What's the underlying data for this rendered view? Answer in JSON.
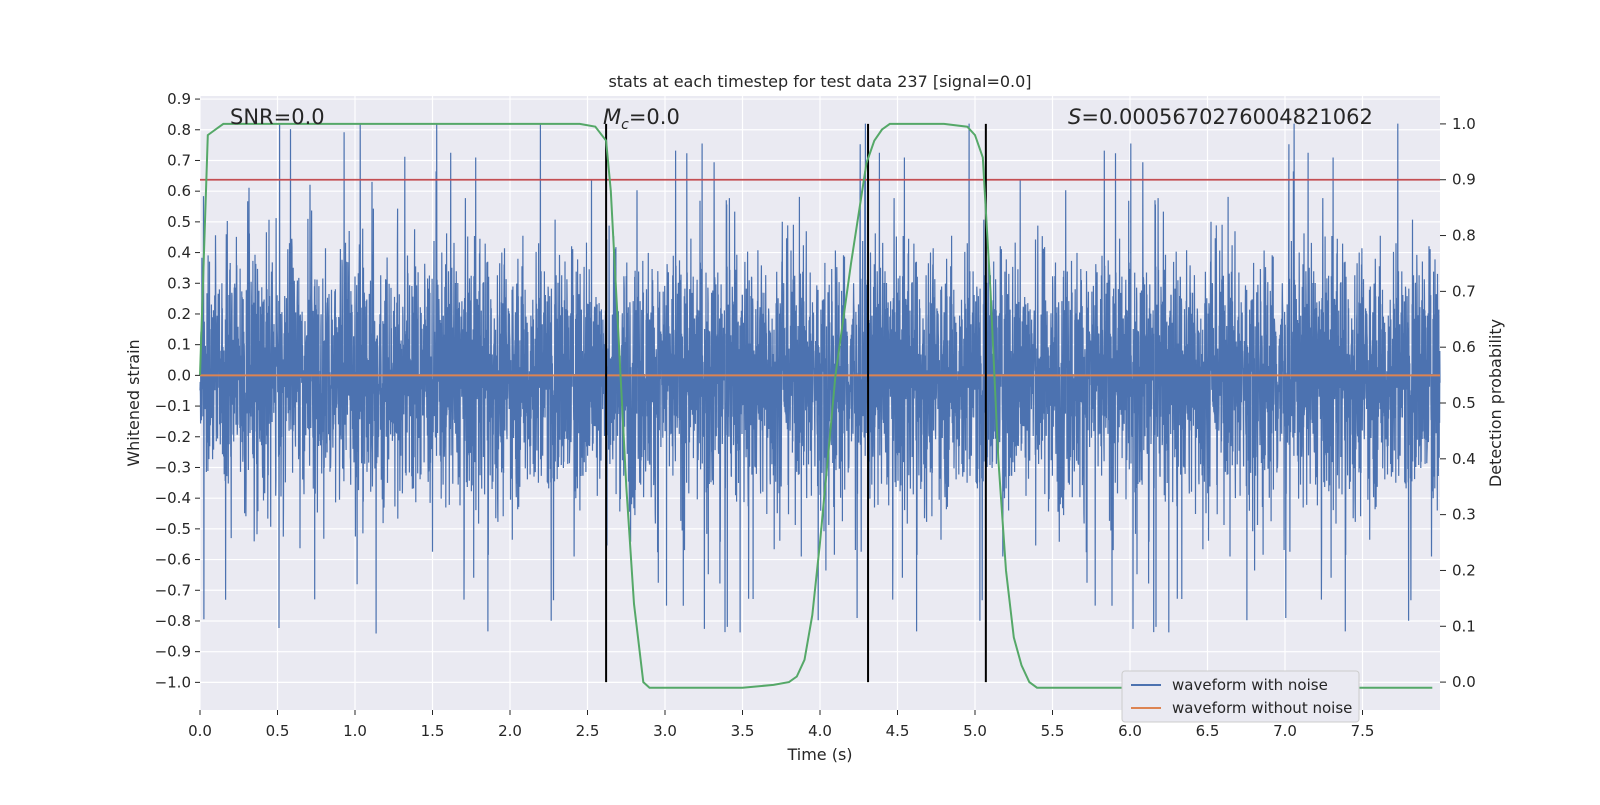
{
  "chart_data": {
    "type": "line",
    "title": "stats at each timestep for test data 237 [signal=0.0]",
    "xlabel": "Time (s)",
    "ylabel": "Whitened strain",
    "y2label": "Detection probability",
    "xlim": [
      0.0,
      8.0
    ],
    "ylim": [
      -1.09,
      0.91
    ],
    "y2lim": [
      -0.05,
      1.05
    ],
    "xticks": [
      "0.0",
      "0.5",
      "1.0",
      "1.5",
      "2.0",
      "2.5",
      "3.0",
      "3.5",
      "4.0",
      "4.5",
      "5.0",
      "5.5",
      "6.0",
      "6.5",
      "7.0",
      "7.5"
    ],
    "xtick_values": [
      0,
      0.5,
      1,
      1.5,
      2,
      2.5,
      3,
      3.5,
      4,
      4.5,
      5,
      5.5,
      6,
      6.5,
      7,
      7.5
    ],
    "yticks": [
      "0.9",
      "0.8",
      "0.7",
      "0.6",
      "0.5",
      "0.4",
      "0.3",
      "0.2",
      "0.1",
      "0.0",
      "−0.1",
      "−0.2",
      "−0.3",
      "−0.4",
      "−0.5",
      "−0.6",
      "−0.7",
      "−0.8",
      "−0.9",
      "−1.0"
    ],
    "ytick_values": [
      0.9,
      0.8,
      0.7,
      0.6,
      0.5,
      0.4,
      0.3,
      0.2,
      0.1,
      0.0,
      -0.1,
      -0.2,
      -0.3,
      -0.4,
      -0.5,
      -0.6,
      -0.7,
      -0.8,
      -0.9,
      -1.0
    ],
    "y2ticks": [
      "1.0",
      "0.9",
      "0.8",
      "0.7",
      "0.6",
      "0.5",
      "0.4",
      "0.3",
      "0.2",
      "0.1",
      "0.0"
    ],
    "y2tick_values": [
      1.0,
      0.9,
      0.8,
      0.7,
      0.6,
      0.5,
      0.4,
      0.3,
      0.2,
      0.1,
      0.0
    ],
    "annotations": {
      "snr": "SNR=0.0",
      "mc_symbol": "M",
      "mc_sub": "c",
      "mc_value": "=0.0",
      "s_symbol": "S",
      "s_value": "=0.0005670276004821062"
    },
    "grid": true,
    "legend_position": "lower-right",
    "series": [
      {
        "name": "waveform with noise",
        "color": "#4c72b0",
        "description": "dense whitened noise, mostly within ±0.3 with spikes up to ~0.8 and down to ~-0.95"
      },
      {
        "name": "waveform without noise",
        "color": "#dd8452",
        "values_constant": 0.0
      },
      {
        "name": "",
        "axis": "secondary",
        "color": "#55a868",
        "x": [
          0.0,
          0.05,
          0.1,
          0.15,
          0.2,
          0.4,
          0.8,
          1.5,
          2.0,
          2.3,
          2.45,
          2.55,
          2.62,
          2.65,
          2.7,
          2.75,
          2.8,
          2.86,
          2.9,
          3.0,
          3.2,
          3.5,
          3.7,
          3.8,
          3.85,
          3.9,
          3.95,
          4.0,
          4.05,
          4.1,
          4.2,
          4.3,
          4.35,
          4.4,
          4.45,
          4.5,
          4.6,
          4.8,
          4.95,
          5.0,
          5.05,
          5.1,
          5.15,
          5.2,
          5.25,
          5.3,
          5.35,
          5.4,
          5.5,
          6.0,
          7.0,
          7.95
        ],
        "values": [
          0.55,
          0.98,
          0.99,
          1.0,
          1.0,
          1.0,
          1.0,
          1.0,
          1.0,
          1.0,
          1.0,
          0.995,
          0.97,
          0.88,
          0.62,
          0.35,
          0.14,
          0.0,
          -0.01,
          -0.01,
          -0.01,
          -0.01,
          -0.005,
          0.0,
          0.01,
          0.04,
          0.12,
          0.25,
          0.4,
          0.55,
          0.75,
          0.93,
          0.97,
          0.99,
          1.0,
          1.0,
          1.0,
          1.0,
          0.995,
          0.98,
          0.94,
          0.7,
          0.4,
          0.2,
          0.08,
          0.03,
          0.0,
          -0.01,
          -0.01,
          -0.01,
          -0.01,
          -0.01
        ]
      }
    ],
    "threshold_line": {
      "axis": "secondary",
      "value": 0.9,
      "color": "#c44e52"
    },
    "event_lines": {
      "x": [
        2.62,
        4.31,
        5.07
      ],
      "y_top": 1.0,
      "y_bottom": 0.0,
      "color": "#000000"
    },
    "noise_seed": 237
  },
  "colors": {
    "plot_bg": "#eaeaf2",
    "grid": "#ffffff",
    "text": "#262626",
    "legend_bg": "#eaeaf2",
    "legend_border": "#cccccc"
  }
}
